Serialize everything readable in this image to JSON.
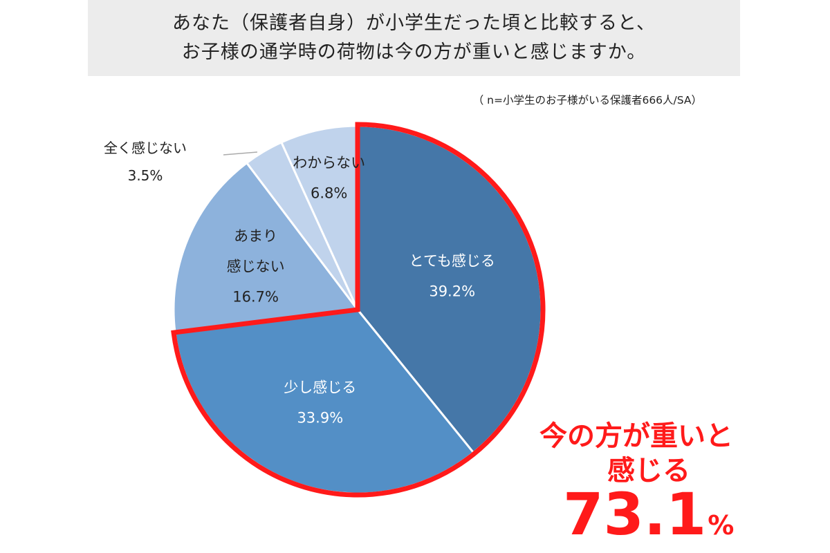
{
  "title": {
    "line1": "あなた（保護者自身）が小学生だった頃と比較すると、",
    "line2": "お子様の通学時の荷物は今の方が重いと感じますか。"
  },
  "sample_note": "（ n=小学生のお子様がいる保護者666人/SA）",
  "callout": {
    "line1": "今の方が重いと",
    "line2": "感じる",
    "value": "73.1",
    "unit": "%",
    "color": "#ff1a1a"
  },
  "chart_data": {
    "type": "pie",
    "start": "12 o'clock, clockwise",
    "highlight_color": "#ff1a1a",
    "slices": [
      {
        "label": "とても感じる",
        "value": 39.2,
        "value_label": "39.2%",
        "color": "#4577a8",
        "text_color": "#ffffff",
        "highlight": true
      },
      {
        "label": "少し感じる",
        "value": 33.9,
        "value_label": "33.9%",
        "color": "#538fc6",
        "text_color": "#ffffff",
        "highlight": true
      },
      {
        "label_lines": [
          "あまり",
          "感じない"
        ],
        "value": 16.7,
        "value_label": "16.7%",
        "color": "#8db2dc",
        "text_color": "#222222",
        "highlight": false
      },
      {
        "label": "全く感じない",
        "value": 3.5,
        "value_label": "3.5%",
        "color": "#c0d3ec",
        "text_color": "#222222",
        "highlight": false
      },
      {
        "label": "わからない",
        "value": 6.8,
        "value_label": "6.8%",
        "color": "#c0d3ec",
        "text_color": "#222222",
        "highlight": false
      }
    ]
  }
}
